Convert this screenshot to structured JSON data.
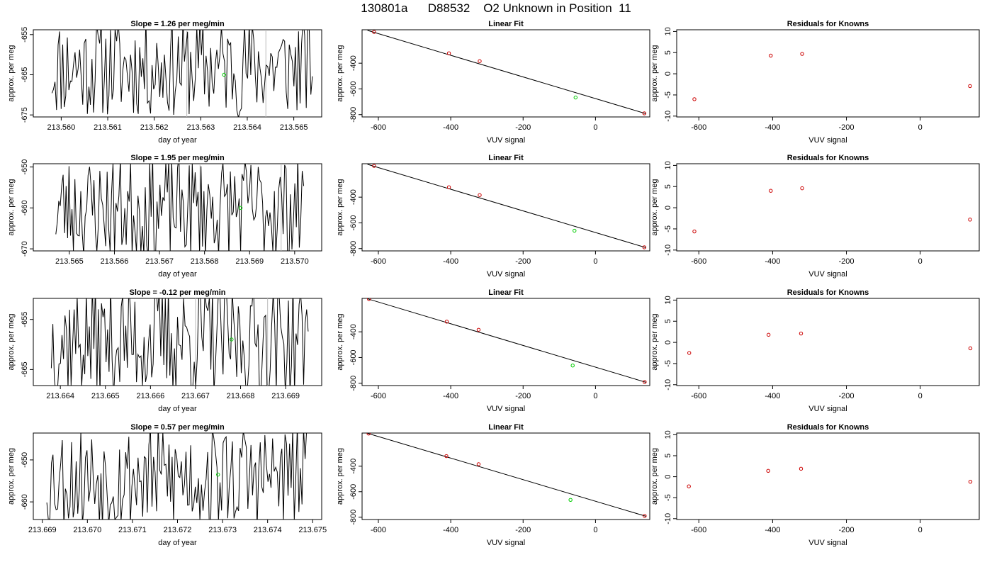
{
  "page_title": "130801a      D88532    O2 Unknown in Position  11",
  "chart_data": [
    {
      "row": 1,
      "type": "line",
      "panel": "time-series",
      "title": "Slope =  1.26  per meg/min",
      "xlabel": "day of year",
      "ylabel": "approx. per meg",
      "xlim": [
        213.5594,
        213.5656
      ],
      "ylim": [
        -675.5,
        -653.8
      ],
      "xticks": [
        "213.560",
        "213.561",
        "213.562",
        "213.563",
        "213.564",
        "213.565"
      ],
      "xtick_values": [
        213.56,
        213.561,
        213.562,
        213.563,
        213.564,
        213.565
      ],
      "yticks": [
        "-655",
        "-665",
        "-675"
      ],
      "ytick_values": [
        -655,
        -665,
        -675
      ],
      "series_color": "#000000",
      "x_start": 213.5598,
      "x_end": 213.5654,
      "y_center": -663,
      "y_amp": 11,
      "seed": 11,
      "vlines": [
        213.5627,
        213.5644
      ],
      "marker": {
        "x": 213.5635,
        "y": -665.0,
        "color": "#00cc00"
      }
    },
    {
      "row": 1,
      "type": "scatter",
      "panel": "linear-fit",
      "title": "Linear Fit",
      "xlabel": "VUV signal",
      "ylabel": "approx. per meg",
      "xlim": [
        -645,
        150
      ],
      "ylim": [
        -818,
        -140
      ],
      "xticks": [
        "-600",
        "-400",
        "-200",
        "0"
      ],
      "xtick_values": [
        -600,
        -400,
        -200,
        0
      ],
      "yticks": [
        "-400",
        "-600",
        "-800"
      ],
      "ytick_values": [
        -400,
        -600,
        -800
      ],
      "points": [
        [
          -612,
          -157
        ],
        [
          -405,
          -323
        ],
        [
          -320,
          -384
        ],
        [
          135,
          -790
        ]
      ],
      "point_color": "#cc0000",
      "unknown": [
        -55,
        -667
      ],
      "unknown_color": "#00cc00",
      "fit_line": [
        [
          -630,
          -145
        ],
        [
          140,
          -793
        ]
      ]
    },
    {
      "row": 1,
      "type": "scatter",
      "panel": "residuals",
      "title": "Residuals for Knowns",
      "xlabel": "VUV signal",
      "ylabel": "approx. per meg",
      "xlim": [
        -660,
        160
      ],
      "ylim": [
        -10.2,
        10.4
      ],
      "xticks": [
        "-600",
        "-400",
        "-200",
        "0"
      ],
      "xtick_values": [
        -600,
        -400,
        -200,
        0
      ],
      "yticks": [
        "10",
        "5",
        "0",
        "-5",
        "-10"
      ],
      "ytick_values": [
        10,
        5,
        0,
        -5,
        -10
      ],
      "points": [
        [
          -612,
          -6.0
        ],
        [
          -405,
          4.3
        ],
        [
          -320,
          4.7
        ],
        [
          135,
          -2.9
        ]
      ],
      "point_color": "#cc0000"
    },
    {
      "row": 2,
      "type": "line",
      "panel": "time-series",
      "title": "Slope =  1.95  per meg/min",
      "xlabel": "day of year",
      "ylabel": "approx. per meg",
      "xlim": [
        213.5642,
        213.5706
      ],
      "ylim": [
        -670.5,
        -649.2
      ],
      "xticks": [
        "213.565",
        "213.566",
        "213.567",
        "213.568",
        "213.569",
        "213.570"
      ],
      "xtick_values": [
        213.565,
        213.566,
        213.567,
        213.568,
        213.569,
        213.57
      ],
      "yticks": [
        "-650",
        "-660",
        "-670"
      ],
      "ytick_values": [
        -650,
        -660,
        -670
      ],
      "series_color": "#000000",
      "x_start": 213.5647,
      "x_end": 213.5702,
      "y_center": -660,
      "y_amp": 11,
      "seed": 23,
      "vlines": [
        213.5679,
        213.5697
      ],
      "marker": {
        "x": 213.5688,
        "y": -660.0,
        "color": "#00cc00"
      }
    },
    {
      "row": 2,
      "type": "scatter",
      "panel": "linear-fit",
      "title": "Linear Fit",
      "xlabel": "VUV signal",
      "ylabel": "approx. per meg",
      "xlim": [
        -645,
        150
      ],
      "ylim": [
        -818,
        -140
      ],
      "xticks": [
        "-600",
        "-400",
        "-200",
        "0"
      ],
      "xtick_values": [
        -600,
        -400,
        -200,
        0
      ],
      "yticks": [
        "-400",
        "-600",
        "-800"
      ],
      "ytick_values": [
        -400,
        -600,
        -800
      ],
      "points": [
        [
          -612,
          -157
        ],
        [
          -405,
          -323
        ],
        [
          -320,
          -384
        ],
        [
          135,
          -790
        ]
      ],
      "point_color": "#cc0000",
      "unknown": [
        -58,
        -661
      ],
      "unknown_color": "#00cc00",
      "fit_line": [
        [
          -630,
          -145
        ],
        [
          140,
          -793
        ]
      ]
    },
    {
      "row": 2,
      "type": "scatter",
      "panel": "residuals",
      "title": "Residuals for Knowns",
      "xlabel": "VUV signal",
      "ylabel": "approx. per meg",
      "xlim": [
        -660,
        160
      ],
      "ylim": [
        -10.2,
        10.4
      ],
      "xticks": [
        "-600",
        "-400",
        "-200",
        "0"
      ],
      "xtick_values": [
        -600,
        -400,
        -200,
        0
      ],
      "yticks": [
        "10",
        "5",
        "0",
        "-5",
        "-10"
      ],
      "ytick_values": [
        10,
        5,
        0,
        -5,
        -10
      ],
      "points": [
        [
          -612,
          -5.6
        ],
        [
          -405,
          4.0
        ],
        [
          -320,
          4.6
        ],
        [
          135,
          -2.8
        ]
      ],
      "point_color": "#cc0000"
    },
    {
      "row": 3,
      "type": "line",
      "panel": "time-series",
      "title": "Slope =  -0.12  per meg/min",
      "xlabel": "day of year",
      "ylabel": "approx. per meg",
      "xlim": [
        213.6634,
        213.6698
      ],
      "ylim": [
        -668.2,
        -650.8
      ],
      "xticks": [
        "213.664",
        "213.665",
        "213.666",
        "213.667",
        "213.668",
        "213.669"
      ],
      "xtick_values": [
        213.664,
        213.665,
        213.666,
        213.667,
        213.668,
        213.669
      ],
      "yticks": [
        "-655",
        "-665"
      ],
      "ytick_values": [
        -655,
        -665
      ],
      "series_color": "#000000",
      "x_start": 213.6638,
      "x_end": 213.6695,
      "y_center": -659,
      "y_amp": 10,
      "seed": 37,
      "vlines": [
        213.667,
        213.6686
      ],
      "marker": {
        "x": 213.6678,
        "y": -659.0,
        "color": "#00cc00"
      }
    },
    {
      "row": 3,
      "type": "scatter",
      "panel": "linear-fit",
      "title": "Linear Fit",
      "xlabel": "VUV signal",
      "ylabel": "approx. per meg",
      "xlim": [
        -645,
        150
      ],
      "ylim": [
        -818,
        -140
      ],
      "xticks": [
        "-600",
        "-400",
        "-200",
        "0"
      ],
      "xtick_values": [
        -600,
        -400,
        -200,
        0
      ],
      "yticks": [
        "-400",
        "-600",
        "-800"
      ],
      "ytick_values": [
        -400,
        -600,
        -800
      ],
      "points": [
        [
          -626,
          -145
        ],
        [
          -411,
          -321
        ],
        [
          -323,
          -384
        ],
        [
          136,
          -790
        ]
      ],
      "point_color": "#cc0000",
      "unknown": [
        -63,
        -662
      ],
      "unknown_color": "#00cc00",
      "fit_line": [
        [
          -630,
          -143
        ],
        [
          140,
          -793
        ]
      ]
    },
    {
      "row": 3,
      "type": "scatter",
      "panel": "residuals",
      "title": "Residuals for Knowns",
      "xlabel": "VUV signal",
      "ylabel": "approx. per meg",
      "xlim": [
        -660,
        160
      ],
      "ylim": [
        -10.2,
        10.4
      ],
      "xticks": [
        "-600",
        "-400",
        "-200",
        "0"
      ],
      "xtick_values": [
        -600,
        -400,
        -200,
        0
      ],
      "yticks": [
        "10",
        "5",
        "0",
        "-5",
        "-10"
      ],
      "ytick_values": [
        10,
        5,
        0,
        -5,
        -10
      ],
      "points": [
        [
          -626,
          -2.5
        ],
        [
          -411,
          1.8
        ],
        [
          -323,
          2.1
        ],
        [
          136,
          -1.4
        ]
      ],
      "point_color": "#cc0000"
    },
    {
      "row": 4,
      "type": "line",
      "panel": "time-series",
      "title": "Slope =  0.57  per meg/min",
      "xlabel": "day of year",
      "ylabel": "approx. per meg",
      "xlim": [
        213.6688,
        213.6752
      ],
      "ylim": [
        -664.2,
        -643.6
      ],
      "xticks": [
        "213.669",
        "213.670",
        "213.671",
        "213.672",
        "213.673",
        "213.674",
        "213.675"
      ],
      "xtick_values": [
        213.669,
        213.67,
        213.671,
        213.672,
        213.673,
        213.674,
        213.675
      ],
      "yticks": [
        "-650",
        "-660"
      ],
      "ytick_values": [
        -650,
        -660
      ],
      "series_color": "#000000",
      "x_start": 213.6691,
      "x_end": 213.6749,
      "y_center": -654,
      "y_amp": 11,
      "seed": 53,
      "vlines": [],
      "marker": {
        "x": 213.6729,
        "y": -653.5,
        "color": "#00cc00"
      }
    },
    {
      "row": 4,
      "type": "scatter",
      "panel": "linear-fit",
      "title": "Linear Fit",
      "xlabel": "VUV signal",
      "ylabel": "approx. per meg",
      "xlim": [
        -645,
        150
      ],
      "ylim": [
        -818,
        -140
      ],
      "xticks": [
        "-600",
        "-400",
        "-200",
        "0"
      ],
      "xtick_values": [
        -600,
        -400,
        -200,
        0
      ],
      "yticks": [
        "-400",
        "-600",
        "-800"
      ],
      "ytick_values": [
        -400,
        -600,
        -800
      ],
      "points": [
        [
          -627,
          -144
        ],
        [
          -412,
          -321
        ],
        [
          -323,
          -384
        ],
        [
          136,
          -790
        ]
      ],
      "point_color": "#cc0000",
      "unknown": [
        -69,
        -664
      ],
      "unknown_color": "#00cc00",
      "fit_line": [
        [
          -630,
          -142
        ],
        [
          140,
          -793
        ]
      ]
    },
    {
      "row": 4,
      "type": "scatter",
      "panel": "residuals",
      "title": "Residuals for Knowns",
      "xlabel": "VUV signal",
      "ylabel": "approx. per meg",
      "xlim": [
        -660,
        160
      ],
      "ylim": [
        -10.2,
        10.4
      ],
      "xticks": [
        "-600",
        "-400",
        "-200",
        "0"
      ],
      "xtick_values": [
        -600,
        -400,
        -200,
        0
      ],
      "yticks": [
        "10",
        "5",
        "0",
        "-5",
        "-10"
      ],
      "ytick_values": [
        10,
        5,
        0,
        -5,
        -10
      ],
      "points": [
        [
          -627,
          -2.3
        ],
        [
          -412,
          1.4
        ],
        [
          -323,
          1.9
        ],
        [
          136,
          -1.2
        ]
      ],
      "point_color": "#cc0000"
    }
  ]
}
